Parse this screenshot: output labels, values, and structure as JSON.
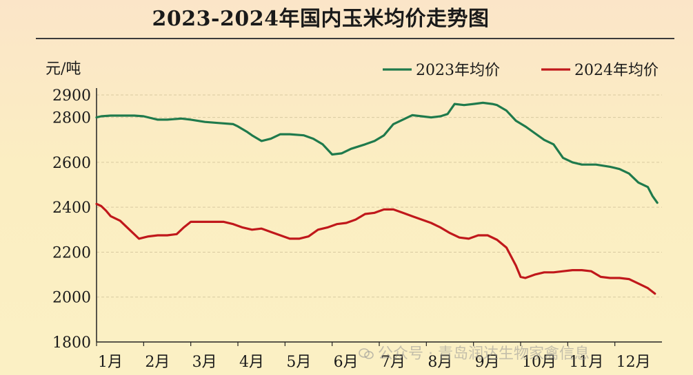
{
  "title": "2023-2024年国内玉米均价走势图",
  "watermark": "公众号 · 青岛润达生物家禽信息",
  "colors": {
    "series_2023": "#1f7a4c",
    "series_2024": "#c0181b",
    "grid": "#d8c9a0",
    "axis": "#222222",
    "text": "#1a1a1a"
  },
  "chart_data": {
    "type": "line",
    "title": "2023-2024年国内玉米均价走势图",
    "ylabel": "元/吨",
    "xlabel": "",
    "ylim": [
      1800,
      2900
    ],
    "yticks": [
      1800,
      2000,
      2200,
      2400,
      2600,
      2800,
      2900
    ],
    "grid": true,
    "legend_position": "top-right",
    "months": [
      "1月",
      "2月",
      "3月",
      "4月",
      "5月",
      "6月",
      "7月",
      "8月",
      "9月",
      "10月",
      "11月",
      "12月"
    ],
    "series": [
      {
        "name": "2023年均价",
        "color": "#1f7a4c",
        "x": [
          1,
          1.1,
          1.3,
          1.5,
          1.8,
          2.0,
          2.3,
          2.5,
          2.8,
          3.0,
          3.3,
          3.6,
          3.9,
          4.0,
          4.2,
          4.3,
          4.5,
          4.7,
          4.9,
          5.1,
          5.4,
          5.6,
          5.8,
          6.0,
          6.2,
          6.4,
          6.7,
          6.9,
          7.1,
          7.3,
          7.5,
          7.7,
          7.9,
          8.1,
          8.3,
          8.45,
          8.6,
          8.8,
          9.0,
          9.2,
          9.4,
          9.5,
          9.7,
          9.9,
          10.1,
          10.3,
          10.5,
          10.7,
          10.9,
          11.1,
          11.3,
          11.6,
          11.9,
          12.1,
          12.3,
          12.5,
          12.7,
          12.8,
          12.9
        ],
        "y": [
          2800,
          2805,
          2808,
          2808,
          2808,
          2805,
          2790,
          2790,
          2795,
          2790,
          2780,
          2775,
          2770,
          2760,
          2735,
          2720,
          2695,
          2705,
          2725,
          2725,
          2720,
          2705,
          2680,
          2635,
          2640,
          2660,
          2680,
          2695,
          2720,
          2770,
          2790,
          2810,
          2805,
          2800,
          2805,
          2815,
          2860,
          2855,
          2860,
          2865,
          2860,
          2855,
          2830,
          2785,
          2760,
          2730,
          2700,
          2680,
          2620,
          2600,
          2590,
          2590,
          2580,
          2570,
          2550,
          2510,
          2490,
          2450,
          2420
        ]
      },
      {
        "name": "2024年均价",
        "color": "#c0181b",
        "x": [
          1,
          1.1,
          1.2,
          1.3,
          1.5,
          1.7,
          1.9,
          2.1,
          2.3,
          2.5,
          2.7,
          2.85,
          3.0,
          3.2,
          3.5,
          3.7,
          3.9,
          4.1,
          4.3,
          4.5,
          4.7,
          4.9,
          5.1,
          5.3,
          5.5,
          5.7,
          5.9,
          6.1,
          6.3,
          6.5,
          6.7,
          6.9,
          7.1,
          7.3,
          7.5,
          7.7,
          7.9,
          8.1,
          8.3,
          8.5,
          8.7,
          8.9,
          9.1,
          9.3,
          9.5,
          9.7,
          9.9,
          10.0,
          10.1,
          10.3,
          10.5,
          10.7,
          10.9,
          11.1,
          11.3,
          11.5,
          11.7,
          11.9,
          12.1,
          12.3,
          12.5,
          12.7,
          12.85
        ],
        "y": [
          2415,
          2405,
          2385,
          2360,
          2340,
          2300,
          2260,
          2270,
          2275,
          2275,
          2280,
          2310,
          2335,
          2335,
          2335,
          2335,
          2325,
          2310,
          2300,
          2305,
          2290,
          2275,
          2260,
          2260,
          2270,
          2300,
          2310,
          2325,
          2330,
          2345,
          2370,
          2375,
          2390,
          2390,
          2375,
          2360,
          2345,
          2330,
          2310,
          2285,
          2265,
          2260,
          2275,
          2275,
          2255,
          2220,
          2140,
          2090,
          2085,
          2100,
          2110,
          2110,
          2115,
          2120,
          2120,
          2115,
          2090,
          2085,
          2085,
          2080,
          2060,
          2040,
          2015
        ]
      }
    ]
  }
}
